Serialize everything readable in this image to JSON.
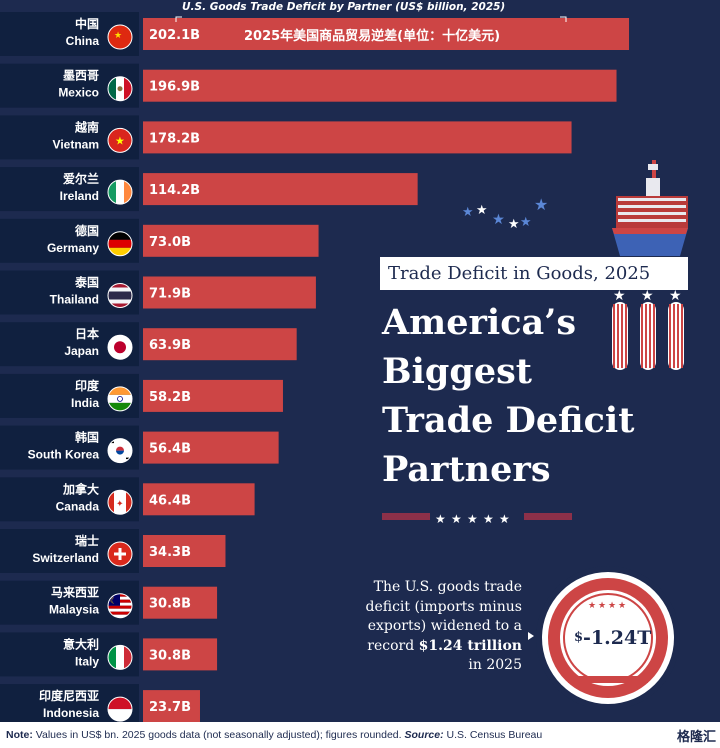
{
  "chart_data": {
    "type": "bar",
    "orientation": "horizontal",
    "title": "U.S. Goods Trade Deficit by Partner (US$ billion, 2025)",
    "title_cn": "2025年美国商品贸易逆差(单位：十亿美元)",
    "categories": [
      {
        "cn": "中国",
        "en": "China",
        "flag": "china-flag"
      },
      {
        "cn": "墨西哥",
        "en": "Mexico",
        "flag": "mexico-flag"
      },
      {
        "cn": "越南",
        "en": "Vietnam",
        "flag": "vietnam-flag"
      },
      {
        "cn": "爱尔兰",
        "en": "Ireland",
        "flag": "ireland-flag"
      },
      {
        "cn": "德国",
        "en": "Germany",
        "flag": "germany-flag"
      },
      {
        "cn": "泰国",
        "en": "Thailand",
        "flag": "thailand-flag"
      },
      {
        "cn": "日本",
        "en": "Japan",
        "flag": "japan-flag"
      },
      {
        "cn": "印度",
        "en": "India",
        "flag": "india-flag"
      },
      {
        "cn": "韩国",
        "en": "South Korea",
        "flag": "south-korea-flag"
      },
      {
        "cn": "加拿大",
        "en": "Canada",
        "flag": "canada-flag"
      },
      {
        "cn": "瑞士",
        "en": "Switzerland",
        "flag": "switzerland-flag"
      },
      {
        "cn": "马来西亚",
        "en": "Malaysia",
        "flag": "malaysia-flag"
      },
      {
        "cn": "意大利",
        "en": "Italy",
        "flag": "italy-flag"
      },
      {
        "cn": "印度尼西亚",
        "en": "Indonesia",
        "flag": "indonesia-flag"
      }
    ],
    "values": [
      202.1,
      196.9,
      178.2,
      114.2,
      73.0,
      71.9,
      63.9,
      58.2,
      56.4,
      46.4,
      34.3,
      30.8,
      30.8,
      23.7
    ],
    "value_labels": [
      "202.1B",
      "196.9B",
      "178.2B",
      "114.2B",
      "73.0B",
      "71.9B",
      "63.9B",
      "58.2B",
      "56.4B",
      "46.4B",
      "34.3B",
      "30.8B",
      "30.8B",
      "23.7B"
    ],
    "unit": "US$ billion",
    "xlim": [
      0,
      205
    ],
    "grid": false,
    "colors": {
      "bar": "#cd4545",
      "label_band": "#10203f",
      "background": "#1d2a4f"
    }
  },
  "infographic": {
    "subtitle": "Trade Deficit in Goods, 2025",
    "title_lines": [
      "America’s",
      "Biggest",
      "Trade Deficit",
      "Partners"
    ],
    "note_pre": "The U.S. goods trade deficit (imports minus exports) widened to a record ",
    "note_bold": "$1.24 trillion",
    "note_post": " in 2025",
    "medal_value": "-1.24T",
    "medal_currency": "$"
  },
  "footer": {
    "note_label": "Note:",
    "note_text": " Values in US$ bn. 2025 goods data (not seasonally adjusted); figures rounded. ",
    "source_label": "Source:",
    "source_text": " U.S. Census Bureau",
    "logo_text": "格隆汇"
  }
}
